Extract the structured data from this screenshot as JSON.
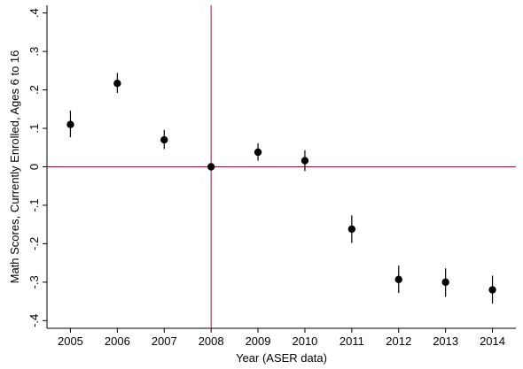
{
  "chart_data": {
    "type": "scatter",
    "xlabel": "Year   (ASER data)",
    "ylabel": "Math Scores, Currently Enrolled, Ages 6 to 16",
    "xlim": [
      2004.5,
      2014.5
    ],
    "ylim": [
      -0.42,
      0.42
    ],
    "x_ticks": [
      "2005",
      "2006",
      "2007",
      "2008",
      "2009",
      "2010",
      "2011",
      "2012",
      "2013",
      "2014"
    ],
    "y_ticks": [
      {
        "value": 0.4,
        "label": ".4"
      },
      {
        "value": 0.3,
        "label": ".3"
      },
      {
        "value": 0.2,
        "label": ".2"
      },
      {
        "value": 0.1,
        "label": ".1"
      },
      {
        "value": 0.0,
        "label": "0"
      },
      {
        "value": -0.1,
        "label": "-.1"
      },
      {
        "value": -0.2,
        "label": "-.2"
      },
      {
        "value": -0.3,
        "label": "-.3"
      },
      {
        "value": -0.4,
        "label": "-.4"
      }
    ],
    "reference_lines": {
      "x": 2008,
      "y": 0,
      "color": "#8b1a3a"
    },
    "grid": false,
    "points": [
      {
        "x": 2005,
        "y": 0.11,
        "lo": 0.077,
        "hi": 0.146
      },
      {
        "x": 2006,
        "y": 0.217,
        "lo": 0.192,
        "hi": 0.244
      },
      {
        "x": 2007,
        "y": 0.07,
        "lo": 0.046,
        "hi": 0.096
      },
      {
        "x": 2008,
        "y": 0.0,
        "lo": 0.0,
        "hi": 0.0
      },
      {
        "x": 2009,
        "y": 0.038,
        "lo": 0.016,
        "hi": 0.061
      },
      {
        "x": 2010,
        "y": 0.016,
        "lo": -0.011,
        "hi": 0.043
      },
      {
        "x": 2011,
        "y": -0.162,
        "lo": -0.198,
        "hi": -0.126
      },
      {
        "x": 2012,
        "y": -0.293,
        "lo": -0.328,
        "hi": -0.257
      },
      {
        "x": 2013,
        "y": -0.3,
        "lo": -0.338,
        "hi": -0.264
      },
      {
        "x": 2014,
        "y": -0.32,
        "lo": -0.356,
        "hi": -0.283
      }
    ]
  }
}
